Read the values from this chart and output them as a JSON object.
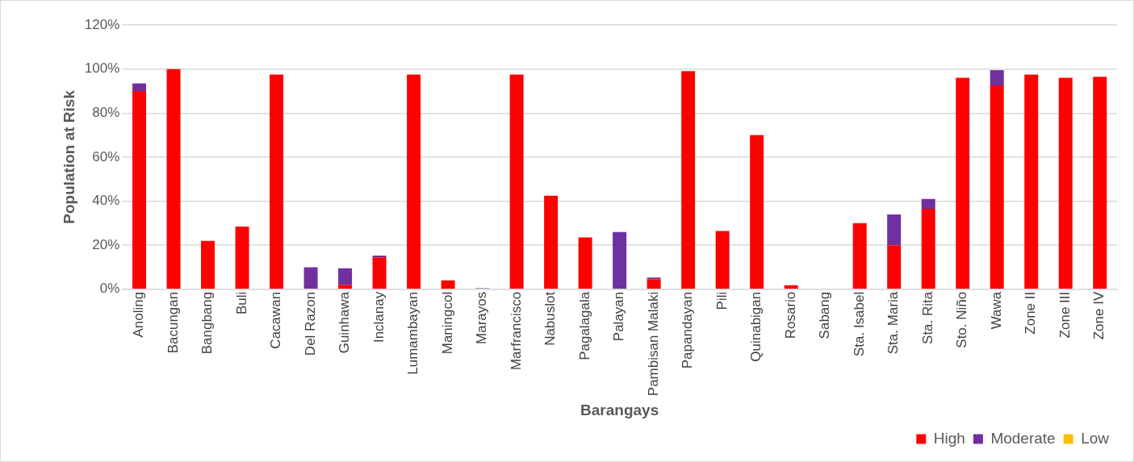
{
  "chart_data": {
    "type": "bar",
    "stacked": true,
    "xlabel": "Barangays",
    "ylabel": "Population at Risk",
    "categories": [
      "Anoling",
      "Bacungan",
      "Bangbang",
      "Buli",
      "Cacawan",
      "Del Razon",
      "Guinhawa",
      "Inclanay",
      "Lumambayan",
      "Maningcol",
      "Marayos",
      "Marfrancisco",
      "Nabuslot",
      "Pagalagala",
      "Palayan",
      "Pambisan Malaki",
      "Papandayan",
      "Pili",
      "Quinabigan",
      "Rosario",
      "Sabang",
      "Sta. Isabel",
      "Sta. Maria",
      "Sta. Rita",
      "Sto. Niño",
      "Wawa",
      "Zone II",
      "Zone III",
      "Zone IV"
    ],
    "series": [
      {
        "name": "High",
        "color": "#ff0000",
        "values": [
          90,
          100,
          22,
          28.5,
          97.5,
          0,
          2,
          14.5,
          97.5,
          4,
          0,
          97.5,
          42.5,
          23.5,
          0,
          4.5,
          99,
          26.5,
          70,
          1.8,
          0,
          30,
          20,
          36.5,
          96,
          92.5,
          97.5,
          96,
          96.5
        ]
      },
      {
        "name": "Moderate",
        "color": "#7030a0",
        "values": [
          3.5,
          0,
          0,
          0,
          0,
          10,
          7.5,
          0.8,
          0,
          0,
          0.5,
          0,
          0,
          0,
          26,
          0.8,
          0,
          0,
          0,
          0,
          0,
          0,
          14,
          4.5,
          0,
          7,
          0,
          0,
          0
        ]
      },
      {
        "name": "Low",
        "color": "#ffc000",
        "values": [
          0,
          0,
          0,
          0,
          0,
          0,
          0,
          0,
          0,
          0,
          0,
          0,
          0,
          0,
          0,
          0,
          0,
          0,
          0,
          0,
          0,
          0,
          0,
          0,
          0,
          0,
          0,
          0,
          0
        ]
      }
    ],
    "ylim": [
      0,
      120
    ],
    "yticks": [
      {
        "value": 0,
        "label": "0%"
      },
      {
        "value": 20,
        "label": "20%"
      },
      {
        "value": 40,
        "label": "40%"
      },
      {
        "value": 60,
        "label": "60%"
      },
      {
        "value": 80,
        "label": "80%"
      },
      {
        "value": 100,
        "label": "100%"
      },
      {
        "value": 120,
        "label": "120%"
      }
    ],
    "grid": "y",
    "legend": "bottom right"
  }
}
